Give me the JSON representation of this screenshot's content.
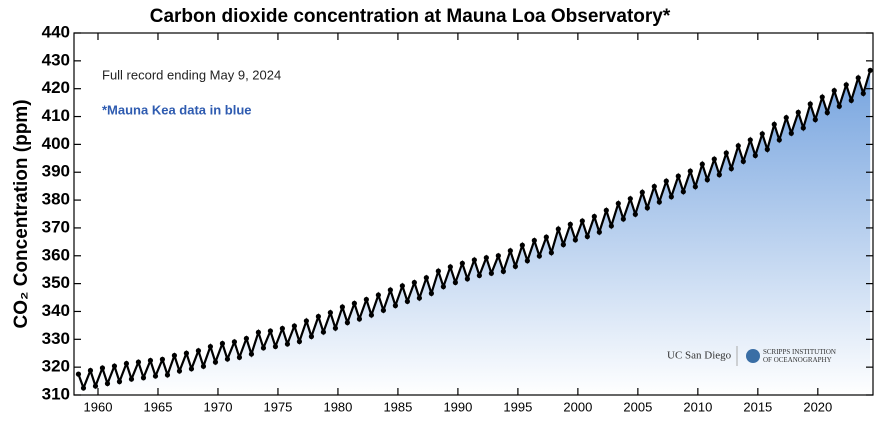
{
  "chart_data": {
    "type": "scatter-line",
    "title": "Carbon dioxide concentration at Mauna Loa Observatory*",
    "y_label": "CO₂ Concentration (ppm)",
    "annotations": [
      "Full record ending May 9, 2024",
      "*Mauna Kea data in blue"
    ],
    "logos": [
      "UC San Diego",
      "SCRIPPS INSTITUTION OF OCEANOGRAPHY"
    ],
    "color": "#000000",
    "fill_color": "#6f9fdd",
    "xlim": [
      1958,
      2024.6
    ],
    "xticks": [
      1960,
      1965,
      1970,
      1975,
      1980,
      1985,
      1990,
      1995,
      2000,
      2005,
      2010,
      2015,
      2020
    ],
    "ylim": [
      310,
      440
    ],
    "yticks": [
      310,
      320,
      330,
      340,
      350,
      360,
      370,
      380,
      390,
      400,
      410,
      420,
      430,
      440
    ],
    "x": [
      1958.37,
      1958.79,
      1959.37,
      1959.79,
      1960.37,
      1960.79,
      1961.37,
      1961.79,
      1962.37,
      1962.79,
      1963.37,
      1963.79,
      1964.37,
      1964.79,
      1965.37,
      1965.79,
      1966.37,
      1966.79,
      1967.37,
      1967.79,
      1968.37,
      1968.79,
      1969.37,
      1969.79,
      1970.37,
      1970.79,
      1971.37,
      1971.79,
      1972.37,
      1972.79,
      1973.37,
      1973.79,
      1974.37,
      1974.79,
      1975.37,
      1975.79,
      1976.37,
      1976.79,
      1977.37,
      1977.79,
      1978.37,
      1978.79,
      1979.37,
      1979.79,
      1980.37,
      1980.79,
      1981.37,
      1981.79,
      1982.37,
      1982.79,
      1983.37,
      1983.79,
      1984.37,
      1984.79,
      1985.37,
      1985.79,
      1986.37,
      1986.79,
      1987.37,
      1987.79,
      1988.37,
      1988.79,
      1989.37,
      1989.79,
      1990.37,
      1990.79,
      1991.37,
      1991.79,
      1992.37,
      1992.79,
      1993.37,
      1993.79,
      1994.37,
      1994.79,
      1995.37,
      1995.79,
      1996.37,
      1996.79,
      1997.37,
      1997.79,
      1998.37,
      1998.79,
      1999.37,
      1999.79,
      2000.37,
      2000.79,
      2001.37,
      2001.79,
      2002.37,
      2002.79,
      2003.37,
      2003.79,
      2004.37,
      2004.79,
      2005.37,
      2005.79,
      2006.37,
      2006.79,
      2007.37,
      2007.79,
      2008.37,
      2008.79,
      2009.37,
      2009.79,
      2010.37,
      2010.79,
      2011.37,
      2011.79,
      2012.37,
      2012.79,
      2013.37,
      2013.79,
      2014.37,
      2014.79,
      2015.37,
      2015.79,
      2016.37,
      2016.79,
      2017.37,
      2017.79,
      2018.37,
      2018.79,
      2019.37,
      2019.79,
      2020.37,
      2020.79,
      2021.37,
      2021.79,
      2022.37,
      2022.79,
      2023.37,
      2023.79,
      2024.37
    ],
    "values": [
      317.5,
      312.5,
      318.8,
      313.2,
      319.7,
      314.1,
      320.4,
      314.8,
      321.3,
      315.7,
      321.8,
      316.2,
      322.4,
      316.8,
      322.8,
      317.2,
      324.2,
      318.6,
      325.0,
      319.4,
      325.9,
      320.3,
      327.4,
      321.8,
      328.5,
      322.9,
      329.1,
      323.5,
      330.3,
      324.7,
      332.5,
      326.9,
      333.0,
      327.4,
      333.9,
      328.3,
      334.8,
      329.2,
      336.6,
      331.0,
      338.2,
      332.6,
      339.6,
      334.0,
      341.6,
      336.0,
      342.9,
      337.3,
      344.3,
      338.7,
      345.9,
      340.4,
      347.7,
      342.1,
      349.2,
      343.6,
      350.4,
      344.8,
      352.1,
      346.5,
      354.5,
      348.9,
      356.0,
      350.4,
      357.3,
      351.7,
      358.5,
      352.9,
      359.3,
      353.7,
      360.0,
      354.4,
      361.8,
      356.2,
      363.8,
      358.2,
      365.5,
      359.9,
      366.7,
      361.1,
      369.6,
      364.0,
      371.3,
      365.7,
      372.5,
      366.9,
      374.1,
      368.5,
      376.3,
      370.7,
      378.8,
      373.2,
      380.5,
      374.9,
      382.8,
      377.2,
      384.9,
      379.3,
      386.8,
      381.2,
      388.6,
      383.0,
      390.4,
      384.8,
      392.9,
      387.3,
      394.7,
      389.1,
      396.9,
      391.3,
      399.5,
      393.9,
      401.6,
      396.0,
      403.8,
      398.2,
      407.2,
      401.6,
      409.6,
      404.0,
      411.5,
      405.9,
      414.5,
      408.9,
      417.0,
      411.4,
      419.3,
      413.7,
      421.4,
      415.8,
      423.9,
      418.3,
      426.6
    ]
  }
}
